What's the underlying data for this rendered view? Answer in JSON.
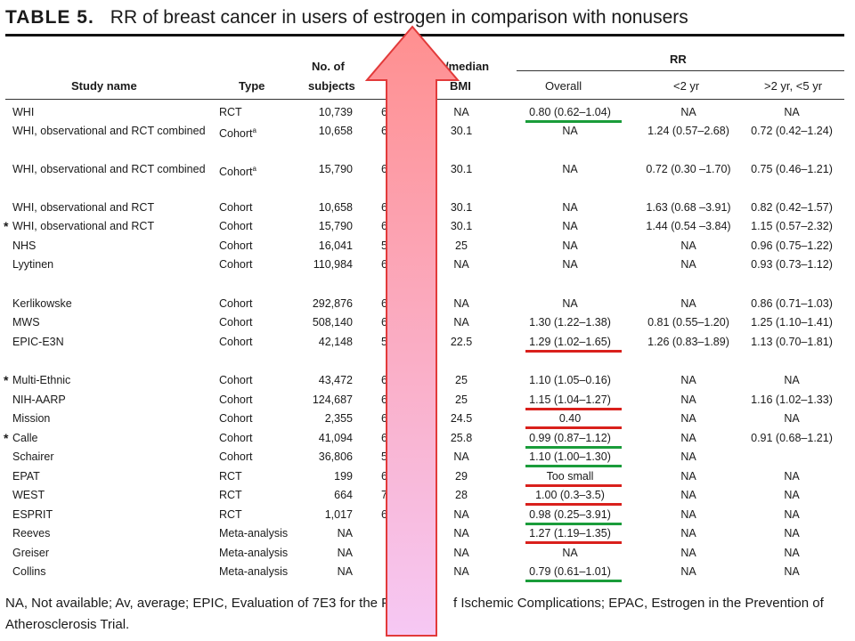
{
  "table": {
    "label": "TABLE 5.",
    "title": "RR of breast cancer in users of estrogen in comparison with nonusers"
  },
  "headers": {
    "study_name": "Study name",
    "type": "Type",
    "subjects_1": "No. of",
    "subjects_2": "subjects",
    "bmi_1": "/median",
    "bmi_2": "BMI",
    "rr": "RR",
    "overall": "Overall",
    "lt2": "<2 yr",
    "gt2": ">2 yr, <5 yr"
  },
  "rows": [
    {
      "name": "WHI",
      "type": "RCT",
      "subjects": "10,739",
      "age": "6",
      "bmi": "NA",
      "overall": "0.80 (0.62–1.04)",
      "lt2": "NA",
      "gt2": "NA",
      "mark": "green",
      "star": ""
    },
    {
      "name": "WHI, observational and RCT combined",
      "type": "Cohort",
      "type_sup": "a",
      "subjects": "10,658",
      "age": "6",
      "bmi": "30.1",
      "overall": "NA",
      "lt2": "1.24 (0.57–2.68)",
      "gt2": "0.72 (0.42–1.24)",
      "mark": "",
      "star": ""
    },
    {
      "name": "WHI, observational and RCT combined",
      "type": "Cohort",
      "type_sup": "a",
      "subjects": "15,790",
      "age": "6",
      "bmi": "30.1",
      "overall": "NA",
      "lt2": "0.72 (0.30 –1.70)",
      "gt2": "0.75 (0.46–1.21)",
      "mark": "",
      "star": ""
    },
    {
      "name": "WHI, observational and RCT",
      "type": "Cohort",
      "subjects": "10,658",
      "age": "6",
      "bmi": "30.1",
      "overall": "NA",
      "lt2": "1.63 (0.68 –3.91)",
      "gt2": "0.82 (0.42–1.57)",
      "mark": "",
      "star": ""
    },
    {
      "name": "WHI, observational and RCT",
      "type": "Cohort",
      "subjects": "15,790",
      "age": "6",
      "bmi": "30.1",
      "overall": "NA",
      "lt2": "1.44 (0.54 –3.84)",
      "gt2": "1.15 (0.57–2.32)",
      "mark": "",
      "star": "*"
    },
    {
      "name": "NHS",
      "type": "Cohort",
      "subjects": "16,041",
      "age": "5",
      "bmi": "25",
      "overall": "NA",
      "lt2": "NA",
      "gt2": "0.96 (0.75–1.22)",
      "mark": "",
      "star": ""
    },
    {
      "name": "Lyytinen",
      "type": "Cohort",
      "subjects": "110,984",
      "age": "6",
      "bmi": "NA",
      "overall": "NA",
      "lt2": "NA",
      "gt2": "0.93 (0.73–1.12)",
      "mark": "",
      "star": ""
    },
    {
      "name": "Kerlikowske",
      "type": "Cohort",
      "subjects": "292,876",
      "age": "6",
      "bmi": "NA",
      "overall": "NA",
      "lt2": "NA",
      "gt2": "0.86 (0.71–1.03)",
      "mark": "",
      "star": ""
    },
    {
      "name": "MWS",
      "type": "Cohort",
      "subjects": "508,140",
      "age": "6",
      "bmi": "NA",
      "overall": "1.30 (1.22–1.38)",
      "lt2": "0.81 (0.55–1.20)",
      "gt2": "1.25 (1.10–1.41)",
      "mark": "",
      "star": ""
    },
    {
      "name": "EPIC-E3N",
      "type": "Cohort",
      "subjects": "42,148",
      "age": "5",
      "bmi": "22.5",
      "overall": "1.29 (1.02–1.65)",
      "lt2": "1.26 (0.83–1.89)",
      "gt2": "1.13 (0.70–1.81)",
      "mark": "red",
      "star": ""
    },
    {
      "name": "Multi-Ethnic",
      "type": "Cohort",
      "subjects": "43,472",
      "age": "6",
      "bmi": "25",
      "overall": "1.10 (1.05–0.16)",
      "lt2": "NA",
      "gt2": "NA",
      "mark": "",
      "star": "*"
    },
    {
      "name": "NIH-AARP",
      "type": "Cohort",
      "subjects": "124,687",
      "age": "6",
      "bmi": "25",
      "overall": "1.15 (1.04–1.27)",
      "lt2": "NA",
      "gt2": "1.16 (1.02–1.33)",
      "mark": "red",
      "star": ""
    },
    {
      "name": "Mission",
      "type": "Cohort",
      "subjects": "2,355",
      "age": "6",
      "bmi": "24.5",
      "overall": "0.40",
      "lt2": "NA",
      "gt2": "NA",
      "mark": "red",
      "star": ""
    },
    {
      "name": "Calle",
      "type": "Cohort",
      "subjects": "41,094",
      "age": "6",
      "bmi": "25.8",
      "overall": "0.99 (0.87–1.12)",
      "lt2": "NA",
      "gt2": "0.91 (0.68–1.21)",
      "mark": "green",
      "star": "*"
    },
    {
      "name": "Schairer",
      "type": "Cohort",
      "subjects": "36,806",
      "age": "5",
      "bmi": "NA",
      "overall": "1.10 (1.00–1.30)",
      "lt2": "NA",
      "gt2": "",
      "mark": "green",
      "star": ""
    },
    {
      "name": "EPAT",
      "type": "RCT",
      "subjects": "199",
      "age": "6",
      "bmi": "29",
      "overall": "Too small",
      "lt2": "NA",
      "gt2": "NA",
      "mark": "red",
      "star": ""
    },
    {
      "name": "WEST",
      "type": "RCT",
      "subjects": "664",
      "age": "7",
      "bmi": "28",
      "overall": "1.00 (0.3–3.5)",
      "lt2": "NA",
      "gt2": "NA",
      "mark": "red",
      "star": ""
    },
    {
      "name": "ESPRIT",
      "type": "RCT",
      "subjects": "1,017",
      "age": "6",
      "bmi": "NA",
      "overall": "0.98 (0.25–3.91)",
      "lt2": "NA",
      "gt2": "NA",
      "mark": "green",
      "star": ""
    },
    {
      "name": "Reeves",
      "type": "Meta-analysis",
      "subjects": "NA",
      "age": "",
      "bmi": "NA",
      "overall": "1.27 (1.19–1.35)",
      "lt2": "NA",
      "gt2": "NA",
      "mark": "red",
      "star": ""
    },
    {
      "name": "Greiser",
      "type": "Meta-analysis",
      "subjects": "NA",
      "age": "",
      "bmi": "NA",
      "overall": "NA",
      "lt2": "NA",
      "gt2": "NA",
      "mark": "",
      "star": ""
    },
    {
      "name": "Collins",
      "type": "Meta-analysis",
      "subjects": "NA",
      "age": "",
      "bmi": "NA",
      "overall": "0.79 (0.61–1.01)",
      "lt2": "NA",
      "gt2": "NA",
      "mark": "green",
      "star": ""
    }
  ],
  "footnote": {
    "left": "NA, Not available; Av, average; EPIC, Evaluation of 7E3 for the Prev",
    "right": "f Ischemic Complications; EPAC, Estrogen in the Prevention of",
    "line2": "Atherosclerosis Trial."
  },
  "colors": {
    "underline_red": "#d9201c",
    "underline_green": "#1a9c3a",
    "arrow_top": "#ff8f8f",
    "arrow_bottom": "#f6c8f4",
    "arrow_border": "#e23a3a"
  },
  "overlay_icons": [
    "up-arrow-icon",
    "asterisk-icon"
  ]
}
